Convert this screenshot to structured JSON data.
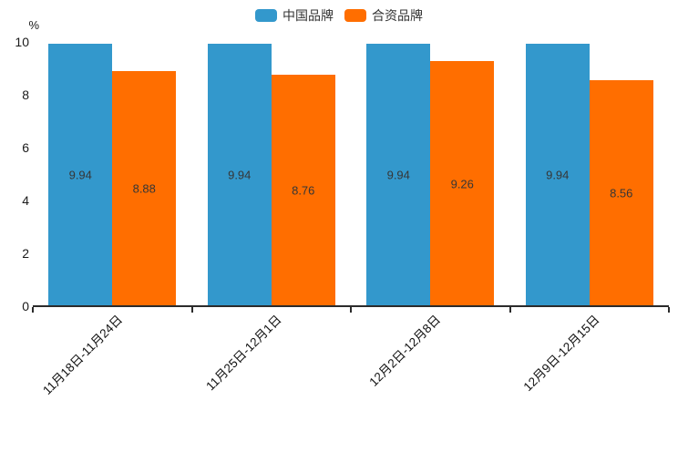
{
  "chart_data": {
    "type": "bar",
    "title": "",
    "xlabel": "",
    "ylabel": "%",
    "categories": [
      "11月18日-11月24日",
      "11月25日-12月1日",
      "12月2日-12月8日",
      "12月9日-12月15日"
    ],
    "series": [
      {
        "name": "中国品牌",
        "color": "#3398cc",
        "values": [
          9.94,
          9.94,
          9.94,
          9.94
        ]
      },
      {
        "name": "合资品牌",
        "color": "#ff6e00",
        "values": [
          8.88,
          8.76,
          9.26,
          8.56
        ]
      }
    ],
    "ylim": [
      0,
      10
    ],
    "yticks": [
      0,
      2,
      4,
      6,
      8,
      10
    ],
    "grid": false,
    "legend_position": "top-center",
    "value_labels": "inside-center",
    "value_label_decimals": 2,
    "axis_color": "#2b2b2b",
    "label_color": "#363636"
  }
}
